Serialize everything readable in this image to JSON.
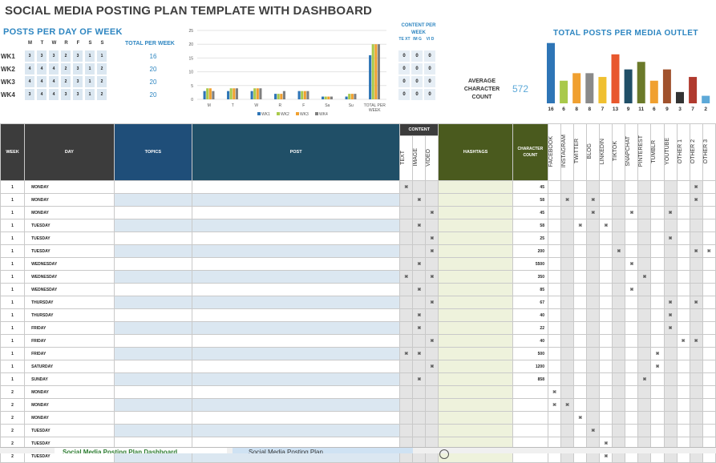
{
  "title": "SOCIAL MEDIA POSTING PLAN TEMPLATE WITH DASHBOARD",
  "posts_per_day": {
    "title": "POSTS PER DAY OF WEEK",
    "days": [
      "M",
      "T",
      "W",
      "R",
      "F",
      "S",
      "S"
    ],
    "total_label": "TOTAL PER WEEK",
    "weeks": [
      {
        "label": "WK1",
        "cells": [
          "3",
          "3",
          "3",
          "2",
          "3",
          "1",
          "1"
        ],
        "total": "16"
      },
      {
        "label": "WK2",
        "cells": [
          "4",
          "4",
          "4",
          "2",
          "3",
          "1",
          "2"
        ],
        "total": "20"
      },
      {
        "label": "WK3",
        "cells": [
          "4",
          "4",
          "4",
          "2",
          "3",
          "1",
          "2"
        ],
        "total": "20"
      },
      {
        "label": "WK4",
        "cells": [
          "3",
          "4",
          "4",
          "3",
          "3",
          "1",
          "2"
        ],
        "total": "20"
      }
    ]
  },
  "content_per_week": {
    "title": "CONTENT PER WEEK",
    "heads": [
      "TE XT",
      "IM G",
      "VI D"
    ],
    "rows": [
      [
        "0",
        "0",
        "0"
      ],
      [
        "0",
        "0",
        "0"
      ],
      [
        "0",
        "0",
        "0"
      ],
      [
        "0",
        "0",
        "0"
      ]
    ]
  },
  "chart_data": [
    {
      "type": "bar",
      "categories": [
        "M",
        "T",
        "W",
        "R",
        "F",
        "Sa",
        "Su",
        "TOTAL PER WEEK"
      ],
      "series": [
        {
          "name": "WK1",
          "values": [
            3,
            3,
            3,
            2,
            3,
            1,
            1,
            16
          ]
        },
        {
          "name": "WK2",
          "values": [
            4,
            4,
            4,
            2,
            3,
            1,
            2,
            20
          ]
        },
        {
          "name": "WK3",
          "values": [
            4,
            4,
            4,
            2,
            3,
            1,
            2,
            20
          ]
        },
        {
          "name": "WK4",
          "values": [
            3,
            4,
            4,
            3,
            3,
            1,
            2,
            20
          ]
        }
      ],
      "ylim": [
        0,
        25
      ],
      "yticks": [
        "0",
        "5",
        "10",
        "15",
        "20",
        "25"
      ],
      "colors": [
        "#2e75b6",
        "#a9c94b",
        "#f0a030",
        "#7f7f7f"
      ],
      "legend": "bottom"
    },
    {
      "type": "bar",
      "title": "TOTAL POSTS PER MEDIA OUTLET",
      "values": [
        16,
        6,
        8,
        8,
        7,
        13,
        9,
        11,
        6,
        9,
        3,
        7,
        2
      ],
      "labels": [
        "16",
        "6",
        "8",
        "8",
        "7",
        "13",
        "9",
        "11",
        "6",
        "9",
        "3",
        "7",
        "2"
      ],
      "colors": [
        "#2e75b6",
        "#a9c94b",
        "#f0a030",
        "#8a8a8a",
        "#f0c030",
        "#e8582e",
        "#204f67",
        "#6b7a2a",
        "#f0a030",
        "#a0522d",
        "#333333",
        "#b03a2e",
        "#5da9d8"
      ],
      "ylim": [
        0,
        17
      ]
    }
  ],
  "dashboard": {
    "avg_label": "AVERAGE CHARACTER COUNT",
    "avg_value": "572"
  },
  "table": {
    "headers": {
      "week": "WEEK",
      "day": "DAY",
      "topics": "TOPICS",
      "post": "POST",
      "content": "CONTENT",
      "text": "TEXT",
      "image": "IMAGE",
      "video": "VIDEO",
      "hashtags": "HASHTAGS",
      "char_count": "CHARACTER COUNT",
      "outlets": [
        "FACEBOOK",
        "INSTAGRAM",
        "TWITTER",
        "BLOG",
        "LINKEDIN",
        "TIKTOK",
        "SNAPCHAT",
        "PINTEREST",
        "TUMBLR",
        "YOUTUBE",
        "OTHER 1",
        "OTHER 2",
        "OTHER 3"
      ]
    },
    "rows": [
      {
        "week": "1",
        "day": "MONDAY",
        "c": [
          1,
          0,
          0
        ],
        "chars": "45",
        "o": [
          0,
          0,
          0,
          0,
          0,
          0,
          0,
          0,
          0,
          0,
          0,
          1,
          0
        ]
      },
      {
        "week": "1",
        "day": "MONDAY",
        "c": [
          0,
          1,
          0
        ],
        "chars": "58",
        "o": [
          0,
          1,
          0,
          1,
          0,
          0,
          0,
          0,
          0,
          0,
          0,
          1,
          0
        ]
      },
      {
        "week": "1",
        "day": "MONDAY",
        "c": [
          0,
          0,
          1
        ],
        "chars": "45",
        "o": [
          0,
          0,
          0,
          1,
          0,
          0,
          1,
          0,
          0,
          1,
          0,
          0,
          0
        ]
      },
      {
        "week": "1",
        "day": "TUESDAY",
        "c": [
          0,
          1,
          0
        ],
        "chars": "58",
        "o": [
          0,
          0,
          1,
          0,
          1,
          0,
          0,
          0,
          0,
          0,
          0,
          0,
          0
        ]
      },
      {
        "week": "1",
        "day": "TUESDAY",
        "c": [
          0,
          0,
          1
        ],
        "chars": "25",
        "o": [
          0,
          0,
          0,
          0,
          0,
          0,
          0,
          0,
          0,
          1,
          0,
          0,
          0
        ]
      },
      {
        "week": "1",
        "day": "TUESDAY",
        "c": [
          0,
          0,
          1
        ],
        "chars": "200",
        "o": [
          0,
          0,
          0,
          0,
          0,
          1,
          0,
          0,
          0,
          0,
          0,
          1,
          1
        ]
      },
      {
        "week": "1",
        "day": "WEDNESDAY",
        "c": [
          0,
          1,
          0
        ],
        "chars": "5500",
        "o": [
          0,
          0,
          0,
          0,
          0,
          0,
          1,
          0,
          0,
          0,
          0,
          0,
          0
        ]
      },
      {
        "week": "1",
        "day": "WEDNESDAY",
        "c": [
          1,
          0,
          1
        ],
        "chars": "350",
        "o": [
          0,
          0,
          0,
          0,
          0,
          0,
          0,
          1,
          0,
          0,
          0,
          0,
          0
        ]
      },
      {
        "week": "1",
        "day": "WEDNESDAY",
        "c": [
          0,
          1,
          0
        ],
        "chars": "85",
        "o": [
          0,
          0,
          0,
          0,
          0,
          0,
          1,
          0,
          0,
          0,
          0,
          0,
          0
        ]
      },
      {
        "week": "1",
        "day": "THURSDAY",
        "c": [
          0,
          0,
          1
        ],
        "chars": "67",
        "o": [
          0,
          0,
          0,
          0,
          0,
          0,
          0,
          0,
          0,
          1,
          0,
          1,
          0
        ]
      },
      {
        "week": "1",
        "day": "THURSDAY",
        "c": [
          0,
          1,
          0
        ],
        "chars": "40",
        "o": [
          0,
          0,
          0,
          0,
          0,
          0,
          0,
          0,
          0,
          1,
          0,
          0,
          0
        ]
      },
      {
        "week": "1",
        "day": "FRIDAY",
        "c": [
          0,
          1,
          0
        ],
        "chars": "22",
        "o": [
          0,
          0,
          0,
          0,
          0,
          0,
          0,
          0,
          0,
          1,
          0,
          0,
          0
        ]
      },
      {
        "week": "1",
        "day": "FRIDAY",
        "c": [
          0,
          0,
          1
        ],
        "chars": "40",
        "o": [
          0,
          0,
          0,
          0,
          0,
          0,
          0,
          0,
          0,
          0,
          1,
          1,
          0
        ]
      },
      {
        "week": "1",
        "day": "FRIDAY",
        "c": [
          1,
          1,
          0
        ],
        "chars": "500",
        "o": [
          0,
          0,
          0,
          0,
          0,
          0,
          0,
          0,
          1,
          0,
          0,
          0,
          0
        ]
      },
      {
        "week": "1",
        "day": "SATURDAY",
        "c": [
          0,
          0,
          1
        ],
        "chars": "1200",
        "o": [
          0,
          0,
          0,
          0,
          0,
          0,
          0,
          0,
          1,
          0,
          0,
          0,
          0
        ]
      },
      {
        "week": "1",
        "day": "SUNDAY",
        "c": [
          0,
          1,
          0
        ],
        "chars": "858",
        "o": [
          0,
          0,
          0,
          0,
          0,
          0,
          0,
          1,
          0,
          0,
          0,
          0,
          0
        ]
      },
      {
        "week": "2",
        "day": "MONDAY",
        "c": [
          0,
          0,
          0
        ],
        "chars": "",
        "o": [
          1,
          0,
          0,
          0,
          0,
          0,
          0,
          0,
          0,
          0,
          0,
          0,
          0
        ]
      },
      {
        "week": "2",
        "day": "MONDAY",
        "c": [
          0,
          0,
          0
        ],
        "chars": "",
        "o": [
          1,
          1,
          0,
          0,
          0,
          0,
          0,
          0,
          0,
          0,
          0,
          0,
          0
        ]
      },
      {
        "week": "2",
        "day": "MONDAY",
        "c": [
          0,
          0,
          0
        ],
        "chars": "",
        "o": [
          0,
          0,
          1,
          0,
          0,
          0,
          0,
          0,
          0,
          0,
          0,
          0,
          0
        ]
      },
      {
        "week": "2",
        "day": "TUESDAY",
        "c": [
          0,
          0,
          0
        ],
        "chars": "",
        "o": [
          0,
          0,
          0,
          1,
          0,
          0,
          0,
          0,
          0,
          0,
          0,
          0,
          0
        ]
      },
      {
        "week": "2",
        "day": "TUESDAY",
        "c": [
          0,
          0,
          0
        ],
        "chars": "",
        "o": [
          0,
          0,
          0,
          0,
          1,
          0,
          0,
          0,
          0,
          0,
          0,
          0,
          0
        ]
      },
      {
        "week": "2",
        "day": "TUESDAY",
        "c": [
          0,
          0,
          0
        ],
        "chars": "",
        "o": [
          0,
          0,
          0,
          0,
          1,
          0,
          0,
          0,
          0,
          0,
          0,
          0,
          0
        ]
      }
    ]
  },
  "tabs": {
    "active": "Social Media Posting Plan Dashboard",
    "other": "Social Media Posting Plan"
  }
}
